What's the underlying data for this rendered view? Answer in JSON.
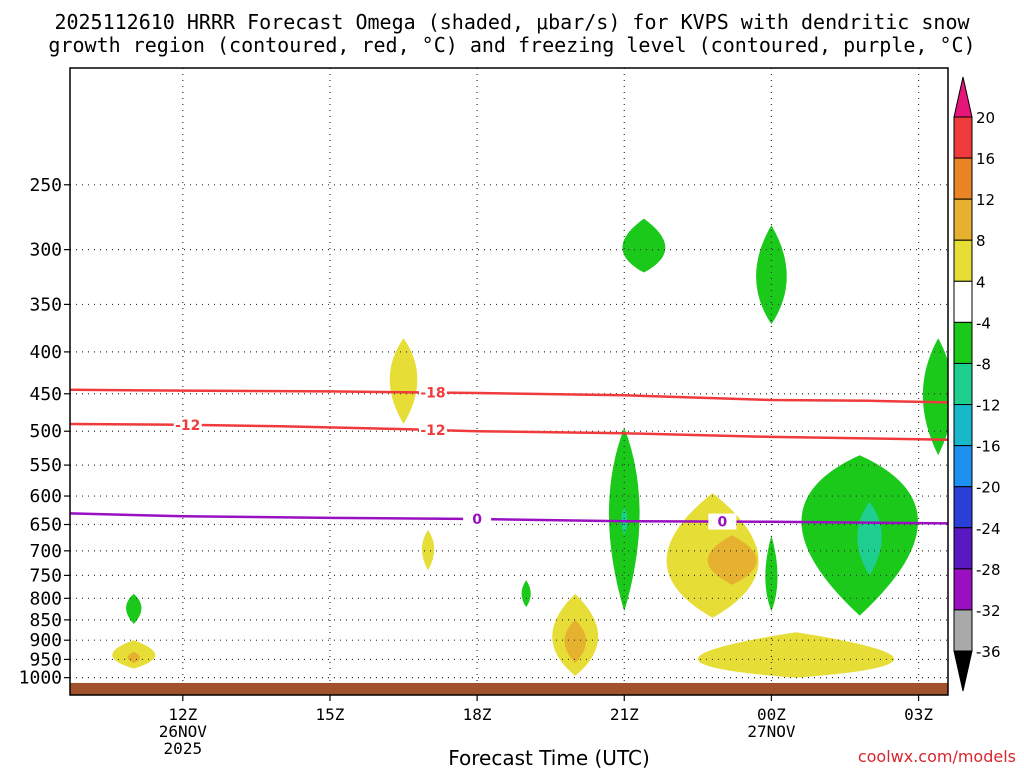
{
  "chart_data": {
    "type": "heatmap",
    "title": "2025112610 HRRR Forecast Omega (shaded, μbar/s) for KVPS with dendritic snow growth region (contoured, red, °C) and freezing level (contoured, purple, °C)",
    "title_line1": "2025112610 HRRR Forecast Omega (shaded, μbar/s) for KVPS with dendritic snow",
    "title_line2": "growth region (contoured, red, °C) and freezing level (contoured, purple, °C)",
    "xlabel": "Forecast Time (UTC)",
    "ylabel": "",
    "credit": "coolwx.com/models",
    "x_range_hours": [
      9.7,
      27.6
    ],
    "y_axis": {
      "type": "pressure_log",
      "range_hPa": [
        1050,
        180
      ],
      "ticks": [
        250,
        300,
        350,
        400,
        450,
        500,
        550,
        600,
        650,
        700,
        750,
        800,
        850,
        900,
        950,
        1000
      ],
      "gridlines": true
    },
    "x_ticks": [
      {
        "hour": 12,
        "label": "12Z",
        "sub1": "26NOV",
        "sub2": "2025"
      },
      {
        "hour": 15,
        "label": "15Z",
        "sub1": "",
        "sub2": ""
      },
      {
        "hour": 18,
        "label": "18Z",
        "sub1": "",
        "sub2": ""
      },
      {
        "hour": 21,
        "label": "21Z",
        "sub1": "",
        "sub2": ""
      },
      {
        "hour": 24,
        "label": "00Z",
        "sub1": "27NOV",
        "sub2": ""
      },
      {
        "hour": 27,
        "label": "03Z",
        "sub1": "",
        "sub2": ""
      }
    ],
    "colorbar": {
      "units": "μbar/s",
      "levels": [
        "20",
        "16",
        "12",
        "8",
        "4",
        "-4",
        "-8",
        "-12",
        "-16",
        "-20",
        "-24",
        "-28",
        "-32",
        "-36"
      ],
      "colors": [
        "#e5157a",
        "#ef3b3b",
        "#ea8426",
        "#e6b12e",
        "#e6dd36",
        "#ffffff",
        "#1ac91a",
        "#1ecf8f",
        "#16b8c9",
        "#1e90ef",
        "#2a3fd8",
        "#5a18c2",
        "#9a10c0",
        "#a9a9a9",
        "#000000"
      ]
    },
    "series": [
      {
        "name": "dendritic -18°C",
        "color": "#ef3b3b",
        "label": "-18",
        "points": [
          [
            9.7,
            445
          ],
          [
            12,
            446
          ],
          [
            15,
            447
          ],
          [
            16.5,
            448
          ],
          [
            18,
            449
          ],
          [
            21,
            452
          ],
          [
            24,
            458
          ],
          [
            26,
            459
          ],
          [
            27.6,
            461
          ]
        ]
      },
      {
        "name": "dendritic -12°C",
        "color": "#ef3b3b",
        "label": "-12",
        "points": [
          [
            9.7,
            490
          ],
          [
            12,
            491
          ],
          [
            14,
            493
          ],
          [
            16.5,
            497
          ],
          [
            18,
            500
          ],
          [
            21,
            503
          ],
          [
            24,
            508
          ],
          [
            27.6,
            512
          ]
        ]
      },
      {
        "name": "freezing level 0°C",
        "color": "#9a10c0",
        "label": "0",
        "points": [
          [
            9.7,
            630
          ],
          [
            12,
            635
          ],
          [
            15,
            638
          ],
          [
            18,
            640
          ],
          [
            21,
            644
          ],
          [
            24,
            645
          ],
          [
            27.6,
            648
          ]
        ]
      }
    ],
    "shaded_regions": [
      {
        "value": 4,
        "center": [
          11.0,
          940
        ],
        "half_width_h": 0.7,
        "p_range": [
          900,
          975
        ]
      },
      {
        "value": 8,
        "center": [
          11.0,
          945
        ],
        "half_width_h": 0.2,
        "p_range": [
          930,
          960
        ]
      },
      {
        "value": -4,
        "center": [
          11.0,
          820
        ],
        "half_width_h": 0.25,
        "p_range": [
          790,
          860
        ]
      },
      {
        "value": 4,
        "center": [
          16.5,
          430
        ],
        "half_width_h": 0.45,
        "p_range": [
          385,
          490
        ]
      },
      {
        "value": 4,
        "center": [
          17.0,
          695
        ],
        "half_width_h": 0.2,
        "p_range": [
          660,
          740
        ]
      },
      {
        "value": -4,
        "center": [
          19.0,
          790
        ],
        "half_width_h": 0.15,
        "p_range": [
          760,
          820
        ]
      },
      {
        "value": 4,
        "center": [
          20.0,
          895
        ],
        "half_width_h": 0.75,
        "p_range": [
          790,
          995
        ]
      },
      {
        "value": 8,
        "center": [
          20.0,
          900
        ],
        "half_width_h": 0.35,
        "p_range": [
          850,
          960
        ]
      },
      {
        "value": -4,
        "center": [
          21.0,
          620
        ],
        "half_width_h": 0.5,
        "p_range": [
          495,
          830
        ]
      },
      {
        "value": -8,
        "center": [
          21.0,
          640
        ],
        "half_width_h": 0.1,
        "p_range": [
          620,
          670
        ]
      },
      {
        "value": -4,
        "center": [
          21.4,
          300
        ],
        "half_width_h": 0.7,
        "p_range": [
          275,
          320
        ]
      },
      {
        "value": 4,
        "center": [
          22.8,
          730
        ],
        "half_width_h": 1.5,
        "p_range": [
          595,
          845
        ]
      },
      {
        "value": 8,
        "center": [
          23.2,
          720
        ],
        "half_width_h": 0.8,
        "p_range": [
          670,
          770
        ]
      },
      {
        "value": -4,
        "center": [
          24.0,
          325
        ],
        "half_width_h": 0.5,
        "p_range": [
          280,
          370
        ]
      },
      {
        "value": -4,
        "center": [
          24.0,
          760
        ],
        "half_width_h": 0.2,
        "p_range": [
          670,
          830
        ]
      },
      {
        "value": -4,
        "center": [
          25.8,
          620
        ],
        "half_width_h": 1.9,
        "p_range": [
          535,
          840
        ]
      },
      {
        "value": -8,
        "center": [
          26.0,
          670
        ],
        "half_width_h": 0.4,
        "p_range": [
          610,
          750
        ]
      },
      {
        "value": -4,
        "center": [
          27.4,
          450
        ],
        "half_width_h": 0.5,
        "p_range": [
          385,
          535
        ]
      },
      {
        "value": 4,
        "center": [
          24.5,
          960
        ],
        "half_width_h": 3.2,
        "p_range": [
          880,
          1000
        ]
      }
    ],
    "terrain": {
      "surface_hPa": 1015,
      "color": "#a0522d"
    }
  }
}
